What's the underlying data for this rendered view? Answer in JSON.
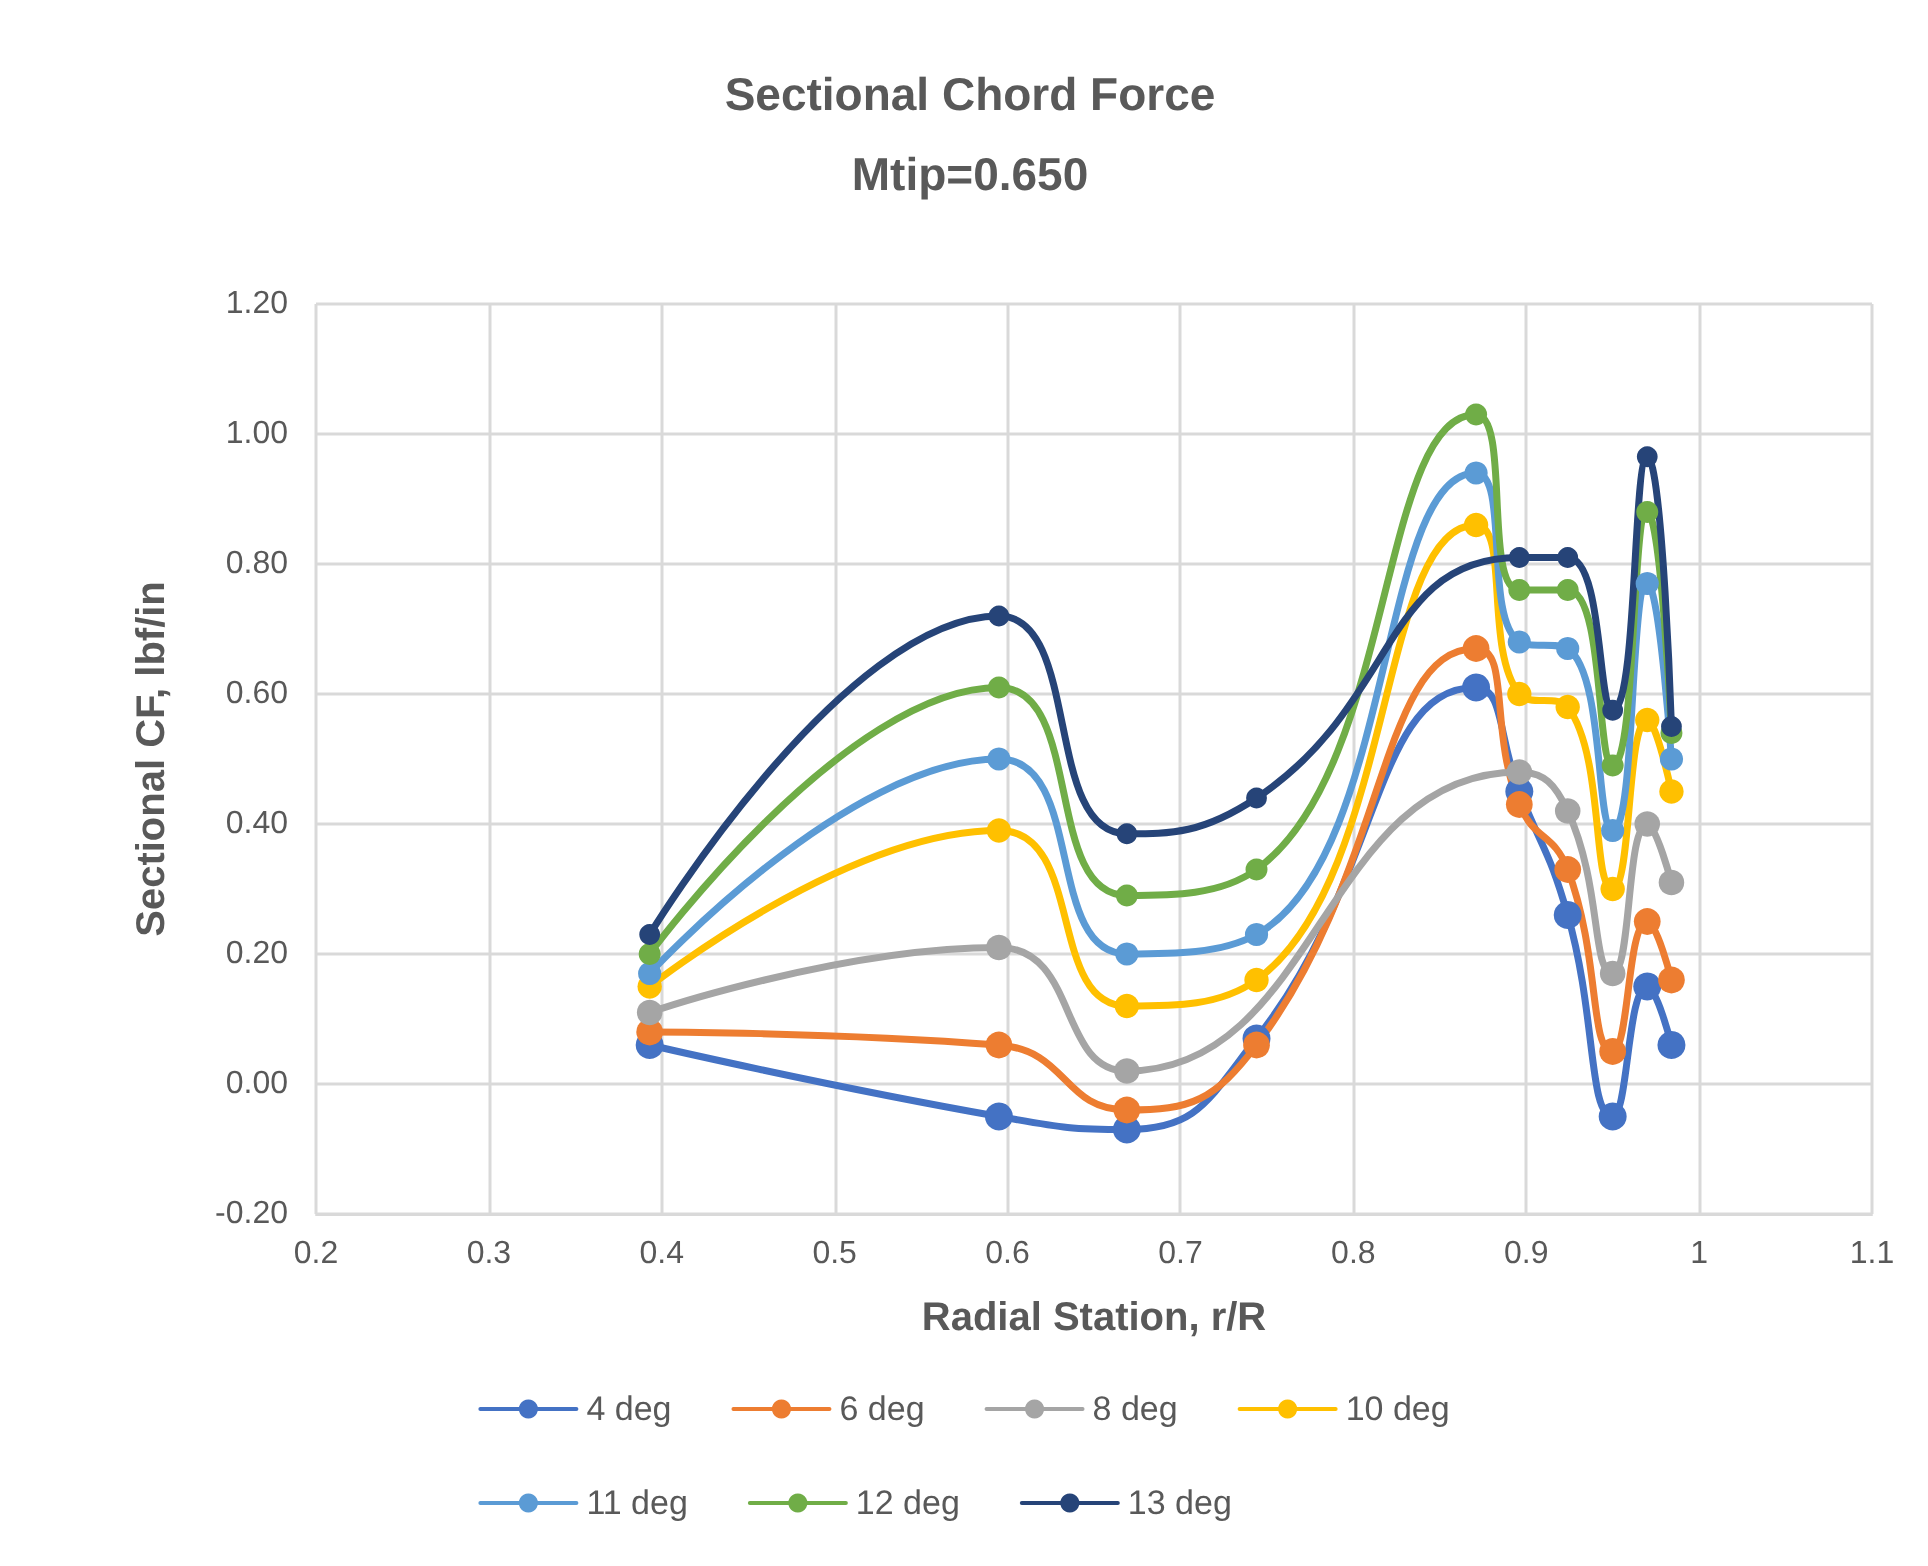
{
  "chart_data": {
    "type": "line",
    "title": "Sectional Chord Force\nMtip=0.650",
    "xlabel": "Radial Station, r/R",
    "ylabel": "Sectional CF, lbf/in",
    "x": [
      0.393,
      0.595,
      0.669,
      0.744,
      0.871,
      0.896,
      0.924,
      0.95,
      0.97,
      0.984
    ],
    "series": [
      {
        "name": "4 deg",
        "color": "#4472c4",
        "values": [
          0.06,
          -0.05,
          -0.07,
          0.07,
          0.61,
          0.45,
          0.26,
          -0.05,
          0.15,
          0.06
        ]
      },
      {
        "name": "6 deg",
        "color": "#ed7d31",
        "values": [
          0.08,
          0.06,
          -0.04,
          0.06,
          0.67,
          0.43,
          0.33,
          0.05,
          0.25,
          0.16
        ]
      },
      {
        "name": "8 deg",
        "color": "#a5a5a5",
        "x": [
          0.393,
          0.595,
          0.669,
          0.896,
          0.924,
          0.95,
          0.97,
          0.984
        ],
        "values": [
          0.11,
          0.21,
          0.02,
          0.48,
          0.42,
          0.17,
          0.4,
          0.31
        ]
      },
      {
        "name": "10 deg",
        "color": "#ffc000",
        "values": [
          0.15,
          0.39,
          0.12,
          0.16,
          0.86,
          0.6,
          0.58,
          0.3,
          0.56,
          0.45
        ]
      },
      {
        "name": "11 deg",
        "color": "#5b9bd5",
        "values": [
          0.17,
          0.5,
          0.2,
          0.23,
          0.94,
          0.68,
          0.67,
          0.39,
          0.77,
          0.5
        ]
      },
      {
        "name": "12 deg",
        "color": "#70ad47",
        "values": [
          0.2,
          0.61,
          0.29,
          0.33,
          1.03,
          0.76,
          0.76,
          0.49,
          0.88,
          0.54
        ]
      },
      {
        "name": "13 deg",
        "color": "#264478",
        "x": [
          0.393,
          0.595,
          0.669,
          0.744,
          0.896,
          0.924,
          0.95,
          0.97,
          0.984
        ],
        "values": [
          0.23,
          0.72,
          0.385,
          0.44,
          0.81,
          0.81,
          0.575,
          0.965,
          0.55
        ]
      }
    ],
    "xlim": [
      0.2,
      1.1
    ],
    "xticks": [
      0.2,
      0.3,
      0.4,
      0.5,
      0.6,
      0.7,
      0.8,
      0.9,
      1,
      1.1
    ],
    "ylim": [
      -0.2,
      1.2
    ],
    "yticks": [
      {
        "value": -0.2,
        "label": "-0.20"
      },
      {
        "value": 0,
        "label": "0.00"
      },
      {
        "value": 0.2,
        "label": "0.20"
      },
      {
        "value": 0.4,
        "label": "0.40"
      },
      {
        "value": 0.6,
        "label": "0.60"
      },
      {
        "value": 0.8,
        "label": "0.80"
      },
      {
        "value": 1,
        "label": "1.00"
      },
      {
        "value": 1.2,
        "label": "1.20"
      }
    ],
    "grid": true,
    "legend": "bottom",
    "marker": "circle",
    "line_style": "solid"
  }
}
